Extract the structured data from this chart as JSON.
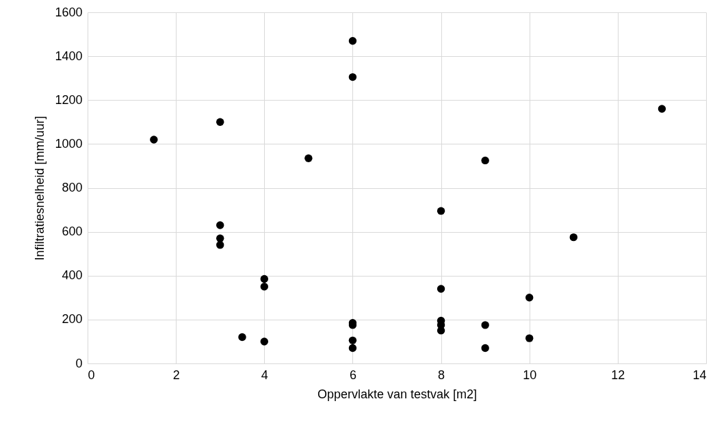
{
  "chart_data": {
    "type": "scatter",
    "xlabel": "Oppervlakte van testvak [m2]",
    "ylabel": "Infiltratiesnelheid [mm/uur]",
    "x": [
      1.5,
      3,
      3,
      3,
      3,
      3.5,
      4,
      4,
      4,
      5,
      6,
      6,
      6,
      6,
      6,
      6,
      8,
      8,
      8,
      8,
      8,
      9,
      9,
      9,
      10,
      10,
      11,
      13
    ],
    "series": [
      {
        "color": "#000000",
        "values": [
          1020,
          1100,
          630,
          570,
          540,
          120,
          385,
          350,
          100,
          935,
          1470,
          1305,
          185,
          175,
          105,
          70,
          695,
          340,
          195,
          175,
          150,
          925,
          175,
          70,
          300,
          115,
          575,
          1160
        ]
      }
    ],
    "xlim": [
      0,
      14
    ],
    "xticks": [
      0,
      2,
      4,
      6,
      8,
      10,
      12,
      14
    ],
    "ylim": [
      0,
      1600
    ],
    "yticks": [
      0,
      200,
      400,
      600,
      800,
      1000,
      1200,
      1400,
      1600
    ],
    "grid": true,
    "marker": "circle"
  }
}
